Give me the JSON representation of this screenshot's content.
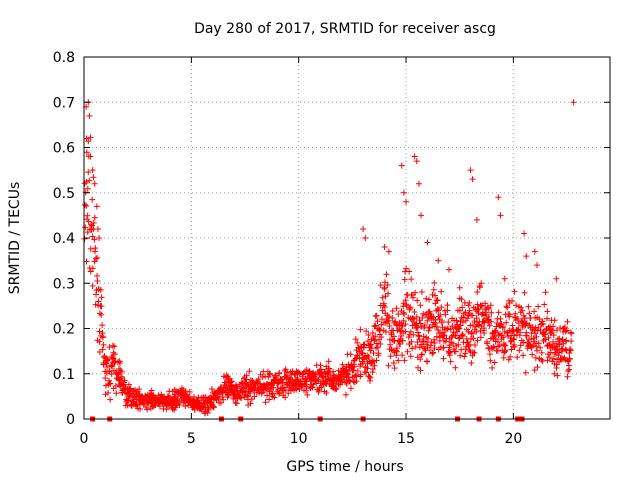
{
  "chart_data": {
    "type": "scatter",
    "title": "Day 280 of 2017, SRMTID for receiver ascg",
    "xlabel": "GPS time / hours",
    "ylabel": "SRMTID / TECUs",
    "xlim": [
      0,
      24.5
    ],
    "ylim": [
      0,
      0.8
    ],
    "x_ticks": [
      0,
      5,
      10,
      15,
      20
    ],
    "x_tick_labels": [
      "0",
      "5",
      "10",
      "15",
      "20"
    ],
    "y_ticks": [
      0,
      0.1,
      0.2,
      0.3,
      0.4,
      0.5,
      0.6,
      0.7,
      0.8
    ],
    "y_tick_labels": [
      "0",
      "0.1",
      "0.2",
      "0.3",
      "0.4",
      "0.5",
      "0.6",
      "0.7",
      "0.8"
    ],
    "grid": true,
    "marker": "+",
    "color": "#ff0000",
    "series": [
      {
        "name": "SRMTID",
        "profile_x": [
          0,
          0.1,
          0.2,
          0.3,
          0.5,
          0.7,
          0.9,
          1.0,
          1.2,
          1.4,
          2.0,
          3.0,
          4.0,
          4.5,
          5.0,
          5.5,
          6.0,
          6.5,
          7.0,
          8.0,
          9.0,
          10.0,
          11.0,
          12.0,
          12.5,
          13.0,
          13.5,
          14.0,
          14.5,
          15.0,
          15.5,
          16.0,
          16.5,
          17.0,
          17.5,
          18.0,
          18.5,
          19.0,
          19.5,
          20.0,
          20.5,
          21.0,
          21.5,
          22.0,
          22.5,
          22.7
        ],
        "profile_y": [
          0.4,
          0.45,
          0.5,
          0.45,
          0.35,
          0.25,
          0.15,
          0.1,
          0.1,
          0.12,
          0.05,
          0.04,
          0.04,
          0.05,
          0.035,
          0.03,
          0.04,
          0.07,
          0.06,
          0.07,
          0.08,
          0.08,
          0.09,
          0.09,
          0.11,
          0.14,
          0.15,
          0.25,
          0.17,
          0.22,
          0.2,
          0.2,
          0.22,
          0.17,
          0.2,
          0.2,
          0.22,
          0.2,
          0.18,
          0.2,
          0.2,
          0.18,
          0.17,
          0.16,
          0.15,
          0.15
        ],
        "spread": [
          0.12,
          0.15,
          0.15,
          0.12,
          0.1,
          0.06,
          0.05,
          0.05,
          0.04,
          0.04,
          0.02,
          0.015,
          0.015,
          0.02,
          0.015,
          0.015,
          0.02,
          0.025,
          0.02,
          0.025,
          0.025,
          0.025,
          0.025,
          0.025,
          0.04,
          0.04,
          0.05,
          0.07,
          0.05,
          0.08,
          0.07,
          0.06,
          0.07,
          0.05,
          0.06,
          0.07,
          0.07,
          0.06,
          0.05,
          0.06,
          0.06,
          0.05,
          0.05,
          0.05,
          0.05,
          0.05
        ],
        "spike_points": [
          [
            0.1,
            0.69
          ],
          [
            0.12,
            0.62
          ],
          [
            0.2,
            0.7
          ],
          [
            0.25,
            0.67
          ],
          [
            0.3,
            0.58
          ],
          [
            0.4,
            0.55
          ],
          [
            0.5,
            0.52
          ],
          [
            0.6,
            0.47
          ],
          [
            0.65,
            0.42
          ],
          [
            0.7,
            0.4
          ],
          [
            13.0,
            0.42
          ],
          [
            13.1,
            0.4
          ],
          [
            14.0,
            0.38
          ],
          [
            14.2,
            0.37
          ],
          [
            14.8,
            0.56
          ],
          [
            14.9,
            0.5
          ],
          [
            15.0,
            0.48
          ],
          [
            15.4,
            0.58
          ],
          [
            15.5,
            0.57
          ],
          [
            15.6,
            0.52
          ],
          [
            15.7,
            0.45
          ],
          [
            16.0,
            0.39
          ],
          [
            16.5,
            0.35
          ],
          [
            17.0,
            0.33
          ],
          [
            17.5,
            0.29
          ],
          [
            18.0,
            0.55
          ],
          [
            18.1,
            0.53
          ],
          [
            18.3,
            0.44
          ],
          [
            18.5,
            0.3
          ],
          [
            19.3,
            0.49
          ],
          [
            19.4,
            0.45
          ],
          [
            19.6,
            0.31
          ],
          [
            20.5,
            0.41
          ],
          [
            20.6,
            0.36
          ],
          [
            21.0,
            0.37
          ],
          [
            21.1,
            0.34
          ],
          [
            21.5,
            0.28
          ],
          [
            22.0,
            0.31
          ],
          [
            22.8,
            0.7
          ]
        ],
        "zero_markers": [
          0.4,
          1.2,
          6.4,
          7.3,
          11.0,
          13.0,
          17.4,
          18.4,
          19.3,
          20.2,
          20.4
        ]
      }
    ]
  }
}
